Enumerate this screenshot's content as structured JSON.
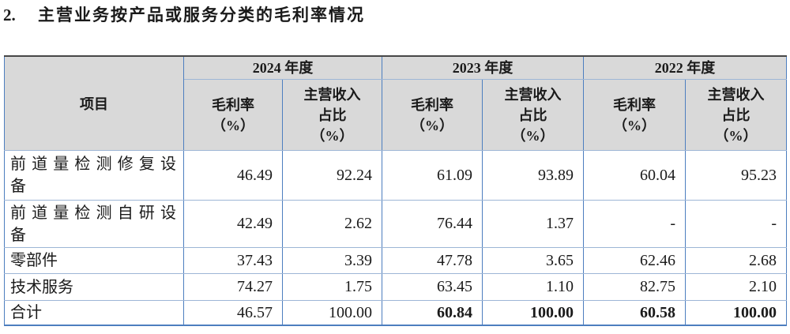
{
  "heading": {
    "number": "2.",
    "title": "主营业务按产品或服务分类的毛利率情况"
  },
  "table": {
    "corner_header": "项目",
    "year_groups": [
      {
        "label": "2024 年度"
      },
      {
        "label": "2023 年度"
      },
      {
        "label": "2022 年度"
      }
    ],
    "sub_headers": {
      "gross_margin": "毛利率\n（%）",
      "revenue_share": "主营收入\n占比\n（%）"
    },
    "rows": [
      {
        "name": "前道量检测修复设备",
        "name_lines": [
          "前道量检测修复设",
          "备"
        ],
        "values": [
          "46.49",
          "92.24",
          "61.09",
          "93.89",
          "60.04",
          "95.23"
        ],
        "bold_value_indexes": []
      },
      {
        "name": "前道量检测自研设备",
        "name_lines": [
          "前道量检测自研设",
          "备"
        ],
        "values": [
          "42.49",
          "2.62",
          "76.44",
          "1.37",
          "-",
          "-"
        ],
        "bold_value_indexes": []
      },
      {
        "name": "零部件",
        "name_lines": [
          "零部件"
        ],
        "values": [
          "37.43",
          "3.39",
          "47.78",
          "3.65",
          "62.46",
          "2.68"
        ],
        "bold_value_indexes": []
      },
      {
        "name": "技术服务",
        "name_lines": [
          "技术服务"
        ],
        "values": [
          "74.27",
          "1.75",
          "63.45",
          "1.10",
          "82.75",
          "2.10"
        ],
        "bold_value_indexes": []
      },
      {
        "name": "合计",
        "name_lines": [
          "合计"
        ],
        "values": [
          "46.57",
          "100.00",
          "60.84",
          "100.00",
          "60.58",
          "100.00"
        ],
        "bold_value_indexes": [
          2,
          3,
          4,
          5
        ]
      }
    ],
    "colors": {
      "header_bg": "#d9d9d9",
      "grid_vertical": "#4d7ebf",
      "grid_horizontal": "#9db6d6",
      "outer_top_border": "#474747",
      "text": "#1a1a1a"
    }
  }
}
